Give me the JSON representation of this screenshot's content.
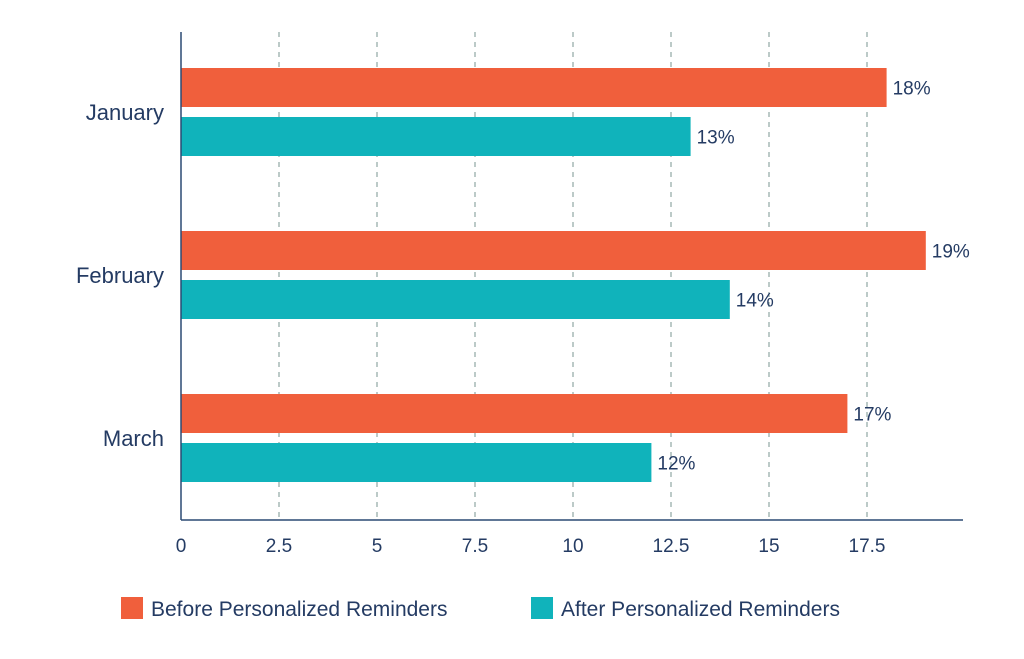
{
  "chart_data": {
    "type": "bar",
    "orientation": "horizontal",
    "categories": [
      "January",
      "February",
      "March"
    ],
    "series": [
      {
        "name": "Before Personalized Reminders",
        "color": "#f05f3c",
        "values": [
          18,
          19,
          17
        ],
        "labels": [
          "18%",
          "19%",
          "17%"
        ]
      },
      {
        "name": "After Personalized Reminders",
        "color": "#10b3bb",
        "values": [
          13,
          14,
          12
        ],
        "labels": [
          "13%",
          "14%",
          "12%"
        ]
      }
    ],
    "xlim": [
      0,
      20
    ],
    "x_ticks": [
      0,
      2.5,
      5,
      7.5,
      10,
      12.5,
      15,
      17.5
    ],
    "x_tick_labels": [
      "0",
      "2.5",
      "5",
      "7.5",
      "10",
      "12.5",
      "15",
      "17.5"
    ],
    "grid": "vertical dashed",
    "legend_position": "bottom",
    "title": "",
    "xlabel": "",
    "ylabel": "",
    "axis_color": "#2b4a73",
    "grid_color": "#8fa7a3"
  }
}
